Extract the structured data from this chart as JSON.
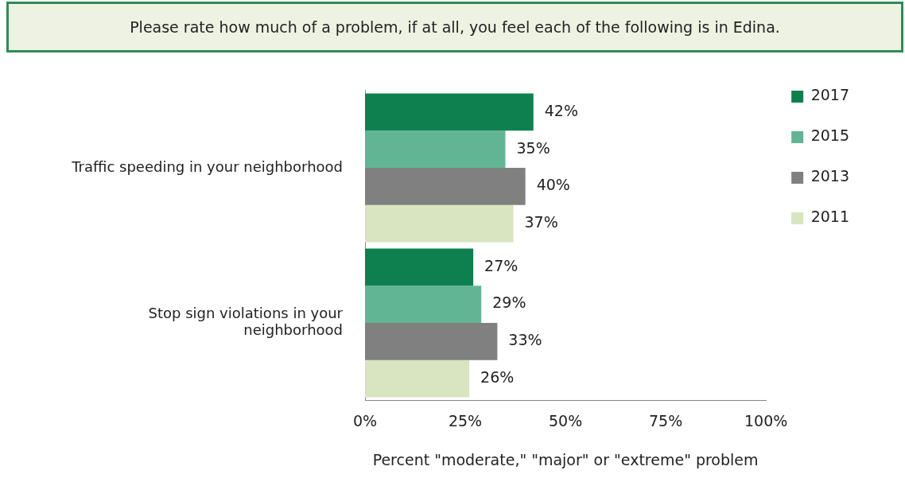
{
  "chart_data": {
    "type": "bar",
    "orientation": "horizontal",
    "title": "Please rate how much of a problem, if at all, you feel each of the following is in Edina.",
    "xlabel": "Percent \"moderate,\" \"major\" or \"extreme\" problem",
    "categories": [
      "Traffic speeding in your neighborhood",
      "Stop sign violations in your neighborhood"
    ],
    "series": [
      {
        "name": "2017",
        "color": "#0e8050",
        "values": [
          42,
          27
        ],
        "value_labels": [
          "42%",
          "27%"
        ]
      },
      {
        "name": "2015",
        "color": "#62b594",
        "values": [
          35,
          29
        ],
        "value_labels": [
          "35%",
          "29%"
        ]
      },
      {
        "name": "2013",
        "color": "#808080",
        "values": [
          40,
          33
        ],
        "value_labels": [
          "40%",
          "33%"
        ]
      },
      {
        "name": "2011",
        "color": "#d9e4c0",
        "values": [
          37,
          26
        ],
        "value_labels": [
          "37%",
          "26%"
        ]
      }
    ],
    "xlim": [
      0,
      100
    ],
    "xticks": [
      {
        "value": 0,
        "label": "0%"
      },
      {
        "value": 25,
        "label": "25%"
      },
      {
        "value": 50,
        "label": "50%"
      },
      {
        "value": 75,
        "label": "75%"
      },
      {
        "value": 100,
        "label": "100%"
      }
    ],
    "grid": false,
    "legend": "right"
  }
}
